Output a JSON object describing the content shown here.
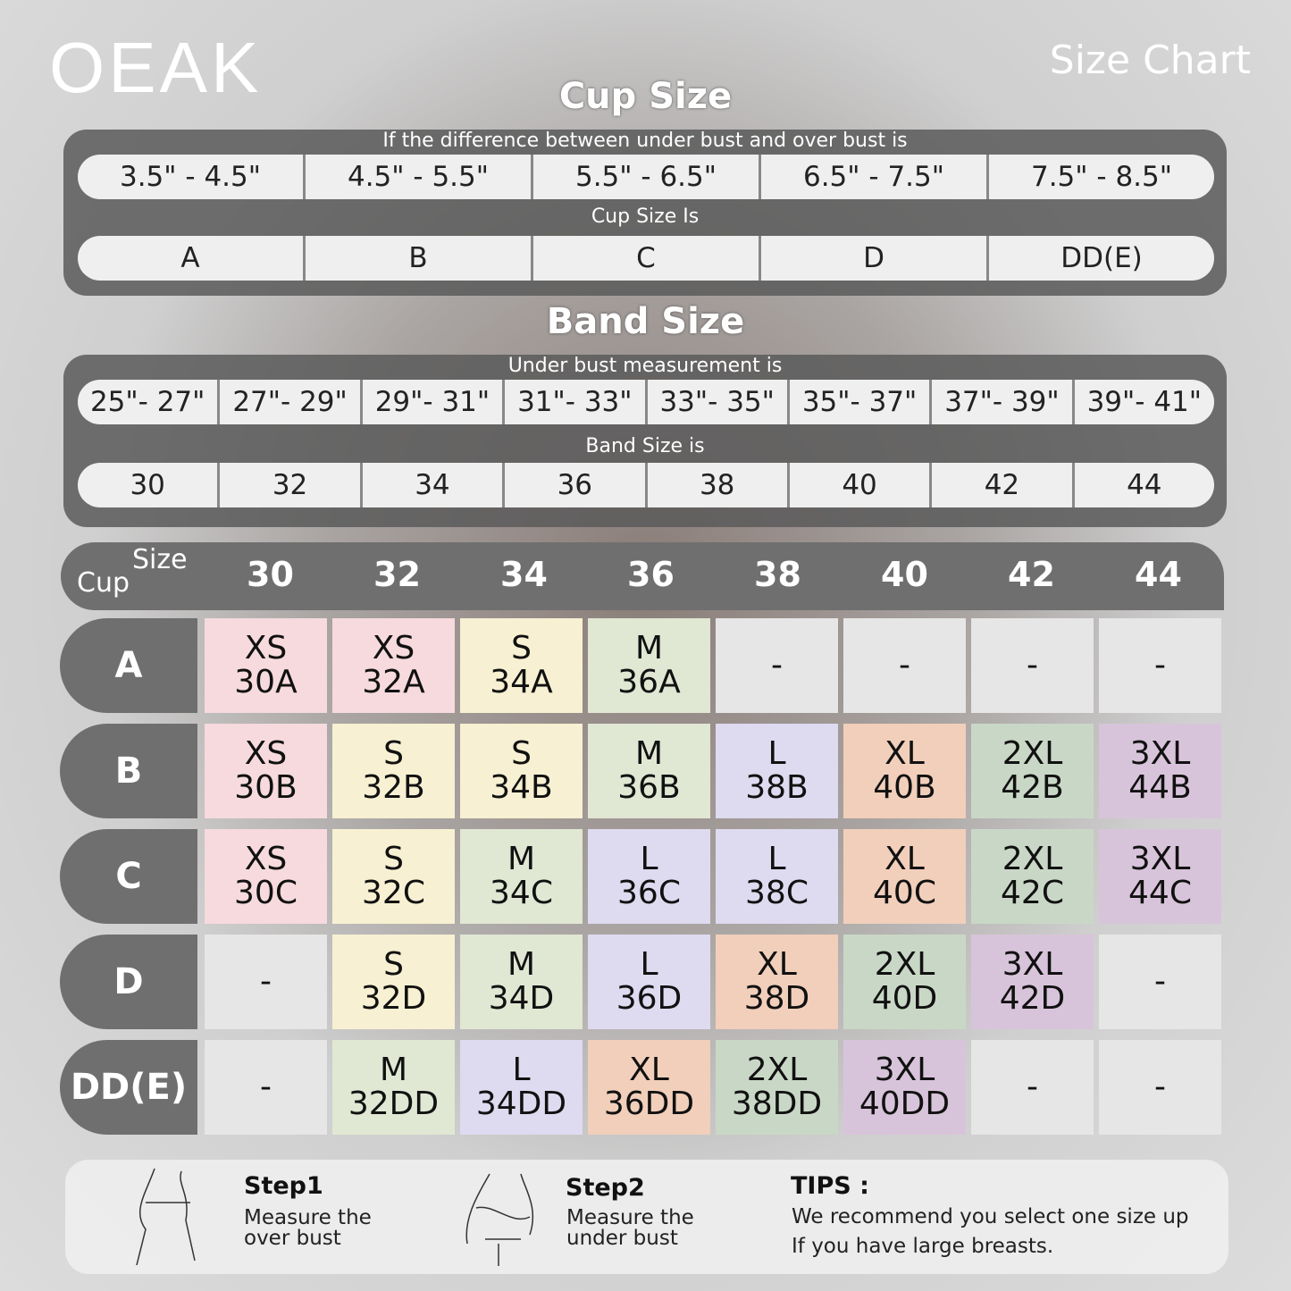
{
  "brand": "OEAK",
  "title": "Size Chart",
  "cup_section": {
    "heading": "Cup Size",
    "diff_label": "If the  difference between under bust and over bust is",
    "diffs": [
      "3.5\" -  4.5\"",
      "4.5\" -  5.5\"",
      "5.5\" -  6.5\"",
      "6.5\" -  7.5\"",
      "7.5\" -  8.5\""
    ],
    "cup_label": "Cup Size Is",
    "cups": [
      "A",
      "B",
      "C",
      "D",
      "DD(E)"
    ]
  },
  "band_section": {
    "heading": "Band Size",
    "under_label": "Under bust measurement is",
    "ranges": [
      "25\"- 27\"",
      "27\"- 29\"",
      "29\"- 31\"",
      "31\"- 33\"",
      "33\"- 35\"",
      "35\"- 37\"",
      "37\"- 39\"",
      "39\"- 41\""
    ],
    "band_label": "Band Size is",
    "bands": [
      "30",
      "32",
      "34",
      "36",
      "38",
      "40",
      "42",
      "44"
    ]
  },
  "table": {
    "size_label": "Size",
    "cup_label": "Cup",
    "columns": [
      "30",
      "32",
      "34",
      "36",
      "38",
      "40",
      "42",
      "44"
    ],
    "rows": [
      {
        "cup": "A",
        "cells": [
          [
            "XS",
            "30A"
          ],
          [
            "XS",
            "32A"
          ],
          [
            "S",
            "34A"
          ],
          [
            "M",
            "36A"
          ],
          [
            "-"
          ],
          [
            "-"
          ],
          [
            "-"
          ],
          [
            "-"
          ]
        ]
      },
      {
        "cup": "B",
        "cells": [
          [
            "XS",
            "30B"
          ],
          [
            "S",
            "32B"
          ],
          [
            "S",
            "34B"
          ],
          [
            "M",
            "36B"
          ],
          [
            "L",
            "38B"
          ],
          [
            "XL",
            "40B"
          ],
          [
            "2XL",
            "42B"
          ],
          [
            "3XL",
            "44B"
          ]
        ]
      },
      {
        "cup": "C",
        "cells": [
          [
            "XS",
            "30C"
          ],
          [
            "S",
            "32C"
          ],
          [
            "M",
            "34C"
          ],
          [
            "L",
            "36C"
          ],
          [
            "L",
            "38C"
          ],
          [
            "XL",
            "40C"
          ],
          [
            "2XL",
            "42C"
          ],
          [
            "3XL",
            "44C"
          ]
        ]
      },
      {
        "cup": "D",
        "cells": [
          [
            "-"
          ],
          [
            "S",
            "32D"
          ],
          [
            "M",
            "34D"
          ],
          [
            "L",
            "36D"
          ],
          [
            "XL",
            "38D"
          ],
          [
            "2XL",
            "40D"
          ],
          [
            "3XL",
            "42D"
          ],
          [
            "-"
          ]
        ]
      },
      {
        "cup": "DD(E)",
        "cells": [
          [
            "-"
          ],
          [
            "M",
            "32DD"
          ],
          [
            "L",
            "34DD"
          ],
          [
            "XL",
            "36DD"
          ],
          [
            "2XL",
            "38DD"
          ],
          [
            "3XL",
            "40DD"
          ],
          [
            "-"
          ],
          [
            "-"
          ]
        ]
      }
    ]
  },
  "size_colors": {
    "XS": "#f6dadd",
    "S": "#f7f0d2",
    "M": "#e0e7d3",
    "L": "#dedaf0",
    "XL": "#f1cfbb",
    "2XL": "#c9d8c6",
    "3XL": "#d8c4da",
    "-": "#e6e6e6"
  },
  "steps": [
    {
      "title": "Step1",
      "desc1": "Measure the",
      "desc2": "over bust",
      "icon": "measure-over-bust-icon"
    },
    {
      "title": "Step2",
      "desc1": "Measure the",
      "desc2": "under bust",
      "icon": "measure-under-bust-icon"
    }
  ],
  "tips": {
    "title": "TIPS :",
    "line1": "We recommend you select one size up",
    "line2": "If you have large breasts."
  }
}
